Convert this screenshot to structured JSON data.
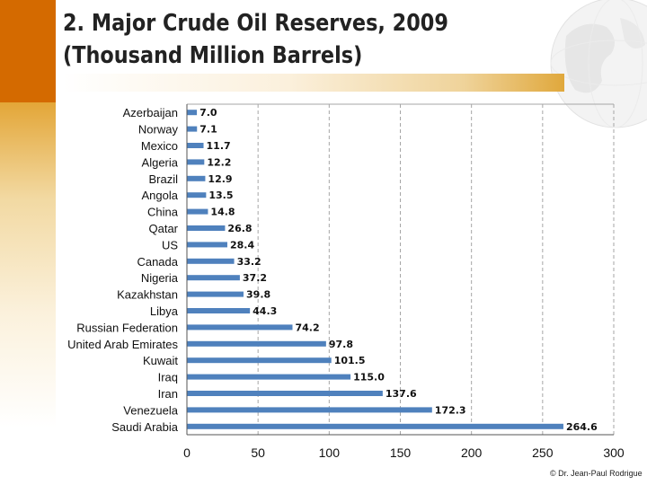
{
  "slide": {
    "title": "2. Major Crude Oil Reserves, 2009 (Thousand Million Barrels)",
    "credit": "© Dr. Jean-Paul Rodrigue"
  },
  "colors": {
    "bar": "#4f81bd",
    "grid": "#a6a6a6",
    "accent_orange": "#d46a00",
    "accent_gold": "#e0a83c"
  },
  "chart_data": {
    "type": "bar",
    "orientation": "horizontal",
    "title": "2. Major Crude Oil Reserves, 2009 (Thousand Million Barrels)",
    "xlabel": "",
    "ylabel": "",
    "xlim": [
      0,
      300
    ],
    "xticks": [
      0,
      50,
      100,
      150,
      200,
      250,
      300
    ],
    "grid": "vertical dashed",
    "categories": [
      "Azerbaijan",
      "Norway",
      "Mexico",
      "Algeria",
      "Brazil",
      "Angola",
      "China",
      "Qatar",
      "US",
      "Canada",
      "Nigeria",
      "Kazakhstan",
      "Libya",
      "Russian Federation",
      "United Arab Emirates",
      "Kuwait",
      "Iraq",
      "Iran",
      "Venezuela",
      "Saudi Arabia"
    ],
    "values": [
      7.0,
      7.1,
      11.7,
      12.2,
      12.9,
      13.5,
      14.8,
      26.8,
      28.4,
      33.2,
      37.2,
      39.8,
      44.3,
      74.2,
      97.8,
      101.5,
      115.0,
      137.6,
      172.3,
      264.6
    ],
    "value_labels": [
      "7.0",
      "7.1",
      "11.7",
      "12.2",
      "12.9",
      "13.5",
      "14.8",
      "26.8",
      "28.4",
      "33.2",
      "37.2",
      "39.8",
      "44.3",
      "74.2",
      "97.8",
      "101.5",
      "115.0",
      "137.6",
      "172.3",
      "264.6"
    ]
  }
}
